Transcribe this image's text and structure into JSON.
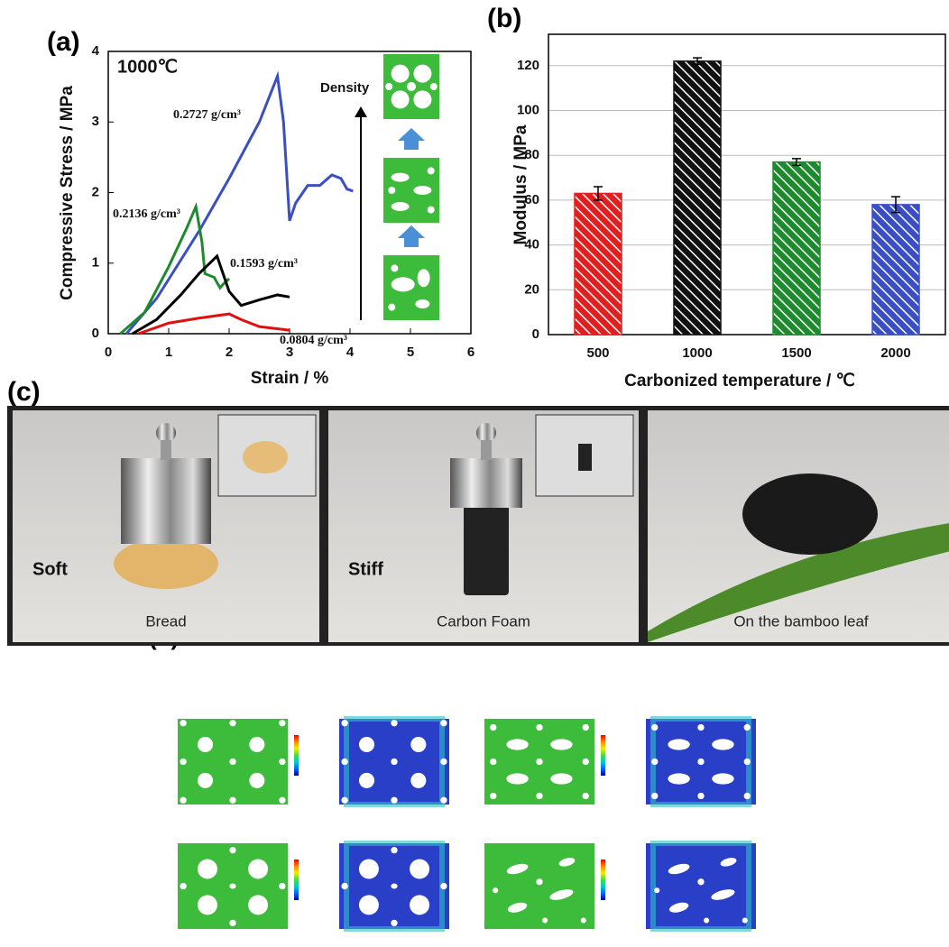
{
  "chart_data": [
    {
      "type": "line",
      "panel_label": "(a)",
      "annotation": "1000℃",
      "density_label": "Density",
      "xlabel": "Strain / %",
      "ylabel": "Compressive Stress / MPa",
      "xlim": [
        0,
        6
      ],
      "ylim": [
        0,
        4
      ],
      "xticks": [
        0,
        1,
        2,
        3,
        4,
        5,
        6
      ],
      "yticks": [
        0,
        1,
        2,
        3,
        4
      ],
      "series": [
        {
          "name": "0.2727 g/cm³",
          "color": "#3a4fc4",
          "x": [
            0.3,
            0.8,
            1.5,
            2.0,
            2.5,
            2.8,
            2.9,
            3.0,
            3.1,
            3.3,
            3.5,
            3.7,
            3.85,
            3.95,
            4.05
          ],
          "values": [
            0,
            0.5,
            1.45,
            2.2,
            3.0,
            3.65,
            3.0,
            1.6,
            1.85,
            2.1,
            2.1,
            2.25,
            2.2,
            2.05,
            2.02
          ]
        },
        {
          "name": "0.2136 g/cm³",
          "color": "#1e8a2e",
          "x": [
            0.2,
            0.6,
            1.0,
            1.3,
            1.45,
            1.55,
            1.6,
            1.75,
            1.85,
            1.9,
            2.0
          ],
          "values": [
            0,
            0.3,
            0.95,
            1.5,
            1.8,
            1.3,
            0.85,
            0.8,
            0.65,
            0.7,
            0.78
          ]
        },
        {
          "name": "0.1593 g/cm³",
          "color": "#000000",
          "x": [
            0.4,
            0.8,
            1.2,
            1.5,
            1.8,
            1.9,
            2.0,
            2.2,
            2.5,
            2.8,
            3.0
          ],
          "values": [
            0,
            0.2,
            0.55,
            0.85,
            1.1,
            0.85,
            0.6,
            0.4,
            0.48,
            0.55,
            0.52
          ]
        },
        {
          "name": "0.0804 g/cm³",
          "color": "#e01010",
          "x": [
            0.5,
            1.0,
            1.5,
            2.0,
            2.2,
            2.5,
            3.0
          ],
          "values": [
            0,
            0.15,
            0.22,
            0.28,
            0.2,
            0.1,
            0.05
          ]
        }
      ]
    },
    {
      "type": "bar",
      "panel_label": "(b)",
      "xlabel": "Carbonized temperature / ℃",
      "ylabel": "Modulus / MPa",
      "categories": [
        "500",
        "1000",
        "1500",
        "2000"
      ],
      "values": [
        63,
        122,
        77,
        58
      ],
      "errors": [
        3,
        1.5,
        1.5,
        3.5
      ],
      "colors": [
        "#e02020",
        "#111111",
        "#1e8a2e",
        "#3a4fc4"
      ],
      "ylim": [
        0,
        134
      ],
      "yticks": [
        0,
        20,
        40,
        60,
        80,
        100,
        120
      ],
      "grid": true
    }
  ],
  "photos": {
    "panel_label": "(c)",
    "items": [
      {
        "label": "Soft",
        "caption": "Bread"
      },
      {
        "label": "Stiff",
        "caption": "Carbon Foam"
      },
      {
        "caption": "On the bamboo leaf"
      }
    ]
  },
  "simulation": {
    "panel_label": "(d)"
  }
}
